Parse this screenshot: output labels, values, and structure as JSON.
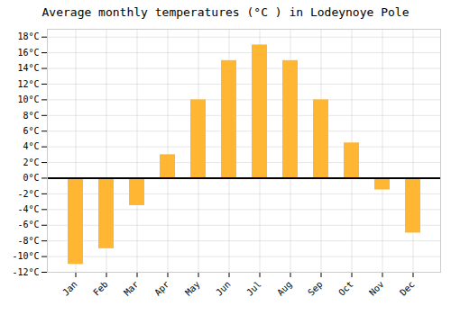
{
  "chart_data": {
    "type": "bar",
    "title": "Average monthly temperatures (°C ) in Lodeynoye Pole",
    "categories": [
      "Jan",
      "Feb",
      "Mar",
      "Apr",
      "May",
      "Jun",
      "Jul",
      "Aug",
      "Sep",
      "Oct",
      "Nov",
      "Dec"
    ],
    "values": [
      -11,
      -9,
      -3.5,
      3,
      10,
      15,
      17,
      15,
      10,
      4.5,
      -1.5,
      -7
    ],
    "color": "#FFB733",
    "ylim": [
      -12,
      19
    ],
    "yticks": [
      {
        "value": -12,
        "label": "-12°C"
      },
      {
        "value": -10,
        "label": "-10°C"
      },
      {
        "value": -8,
        "label": "-8°C"
      },
      {
        "value": -6,
        "label": "-6°C"
      },
      {
        "value": -4,
        "label": "-4°C"
      },
      {
        "value": -2,
        "label": "-2°C"
      },
      {
        "value": 0,
        "label": "0°C"
      },
      {
        "value": 2,
        "label": "2°C"
      },
      {
        "value": 4,
        "label": "4°C"
      },
      {
        "value": 6,
        "label": "6°C"
      },
      {
        "value": 8,
        "label": "8°C"
      },
      {
        "value": 10,
        "label": "10°C"
      },
      {
        "value": 12,
        "label": "12°C"
      },
      {
        "value": 14,
        "label": "14°C"
      },
      {
        "value": 16,
        "label": "16°C"
      },
      {
        "value": 18,
        "label": "18°C"
      }
    ],
    "grid": true
  }
}
